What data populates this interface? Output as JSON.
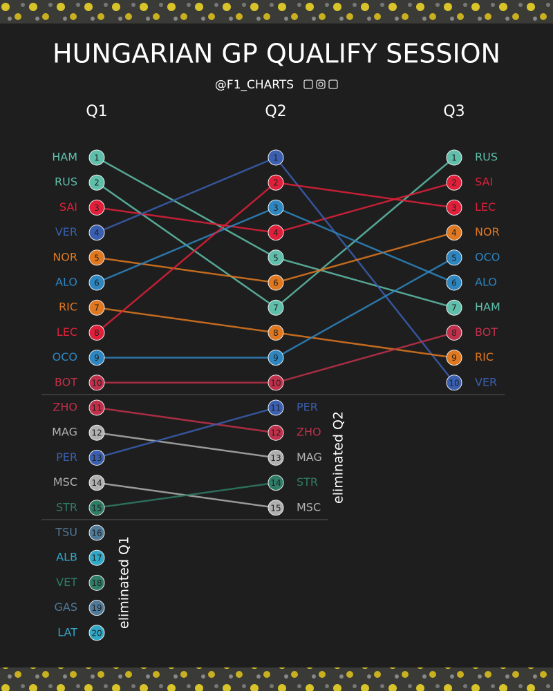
{
  "chart_data": {
    "type": "bump",
    "title": "HUNGARIAN GP QUALIFY SESSION",
    "subtitle": "@F1_CHARTS",
    "columns": [
      "Q1",
      "Q2",
      "Q3"
    ],
    "annotations": [
      "eliminated Q2",
      "eliminated Q1"
    ],
    "series": [
      {
        "name": "HAM",
        "color": "#5fbfaa",
        "values": [
          1,
          5,
          7
        ]
      },
      {
        "name": "RUS",
        "color": "#5fbfaa",
        "values": [
          2,
          7,
          1
        ]
      },
      {
        "name": "SAI",
        "color": "#e0203a",
        "values": [
          3,
          4,
          2
        ]
      },
      {
        "name": "VER",
        "color": "#3a5fb0",
        "values": [
          4,
          1,
          10
        ]
      },
      {
        "name": "NOR",
        "color": "#e07820",
        "values": [
          5,
          6,
          4
        ]
      },
      {
        "name": "ALO",
        "color": "#2e86c1",
        "values": [
          6,
          3,
          6
        ]
      },
      {
        "name": "RIC",
        "color": "#e07820",
        "values": [
          7,
          8,
          9
        ]
      },
      {
        "name": "LEC",
        "color": "#e0203a",
        "values": [
          8,
          2,
          3
        ]
      },
      {
        "name": "OCO",
        "color": "#2e86c1",
        "values": [
          9,
          9,
          5
        ]
      },
      {
        "name": "BOT",
        "color": "#c0304a",
        "values": [
          10,
          10,
          8
        ]
      },
      {
        "name": "ZHO",
        "color": "#c0304a",
        "values": [
          11,
          12,
          null
        ]
      },
      {
        "name": "MAG",
        "color": "#b0b0b0",
        "values": [
          12,
          13,
          null
        ]
      },
      {
        "name": "PER",
        "color": "#3a5fb0",
        "values": [
          13,
          11,
          null
        ]
      },
      {
        "name": "MSC",
        "color": "#b0b0b0",
        "values": [
          14,
          15,
          null
        ]
      },
      {
        "name": "STR",
        "color": "#2e7d66",
        "values": [
          15,
          14,
          null
        ]
      },
      {
        "name": "TSU",
        "color": "#4f7a9a",
        "values": [
          16,
          null,
          null
        ]
      },
      {
        "name": "ALB",
        "color": "#30a8c8",
        "values": [
          17,
          null,
          null
        ]
      },
      {
        "name": "VET",
        "color": "#2e7d66",
        "values": [
          18,
          null,
          null
        ]
      },
      {
        "name": "GAS",
        "color": "#4f7a9a",
        "values": [
          19,
          null,
          null
        ]
      },
      {
        "name": "LAT",
        "color": "#30a8c8",
        "values": [
          20,
          null,
          null
        ]
      }
    ]
  }
}
